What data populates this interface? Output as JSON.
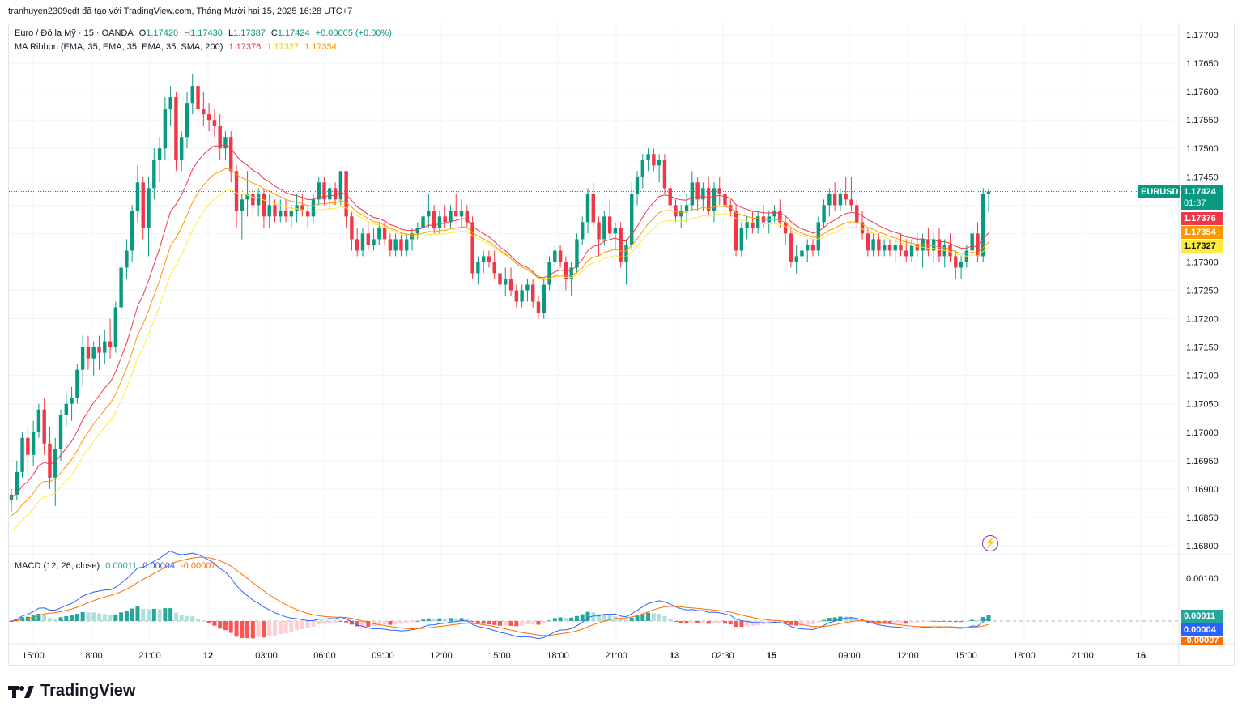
{
  "credit": "tranhuyen2309cdt đã tạo với TradingView.com, Tháng Mười hai 15, 2025 16:28 UTC+7",
  "symbol_line": {
    "name": "Euro / Đô la Mỹ · 15 · OANDA",
    "o_label": "O",
    "o": "1.17420",
    "h_label": "H",
    "h": "1.17430",
    "l_label": "L",
    "l": "1.17387",
    "c_label": "C",
    "c": "1.17424",
    "change": "+0.00005 (+0.00%)"
  },
  "ma_line": {
    "name": "MA Ribbon (EMA, 35, EMA, 35, EMA, 35, SMA, 200)",
    "v1": "1.17376",
    "v2": "1.17327",
    "v3": "1.17354"
  },
  "macd_line": {
    "name": "MACD (12, 26, close)",
    "v1": "0.00011",
    "v2": "0.00004",
    "v3": "-0.00007"
  },
  "price_axis": [
    "1.17700",
    "1.17650",
    "1.17600",
    "1.17550",
    "1.17500",
    "1.17450",
    "1.17400",
    "1.17350",
    "1.17300",
    "1.17250",
    "1.17200",
    "1.17150",
    "1.17100",
    "1.17050",
    "1.17000",
    "1.16950",
    "1.16900",
    "1.16850",
    "1.16800"
  ],
  "macd_axis": [
    "0.00100"
  ],
  "time_axis": [
    "15:00",
    "18:00",
    "21:00",
    "12",
    "03:00",
    "06:00",
    "09:00",
    "12:00",
    "15:00",
    "18:00",
    "21:00",
    "13",
    "02:30",
    "15",
    "09:00",
    "12:00",
    "15:00",
    "18:00",
    "21:00",
    "16"
  ],
  "tags": {
    "symbol": "EURUSD",
    "last": "1.17424",
    "countdown": "01:37",
    "ma_red": "1.17376",
    "ma_orange": "1.17354",
    "ma_yellow": "1.17327",
    "macd_hist": "0.00011",
    "macd_line": "0.00004",
    "macd_signal": "-0.00007"
  },
  "brand": "TradingView",
  "colors": {
    "up": "#089981",
    "down": "#f23645",
    "ma_red": "#f23645",
    "ma_orange": "#ff9800",
    "ma_yellow": "#ffeb3b",
    "macd": "#2962ff",
    "signal": "#ff6d00",
    "hist_up_strong": "#26a69a",
    "hist_up_weak": "#b2dfdb",
    "hist_down_strong": "#ff5252",
    "hist_down_weak": "#ffcdd2"
  },
  "chart_data": {
    "type": "candlestick",
    "instrument": "EURUSD",
    "ylim": [
      1.1678,
      1.1771
    ],
    "candles_ohlc": [
      [
        1.1688,
        1.169,
        1.1686,
        1.1689
      ],
      [
        1.1689,
        1.1695,
        1.1688,
        1.1693
      ],
      [
        1.1693,
        1.17,
        1.1692,
        1.1699
      ],
      [
        1.1699,
        1.1701,
        1.1693,
        1.1696
      ],
      [
        1.1696,
        1.1702,
        1.1694,
        1.17
      ],
      [
        1.17,
        1.1705,
        1.1699,
        1.1704
      ],
      [
        1.1704,
        1.1706,
        1.1696,
        1.1698
      ],
      [
        1.1698,
        1.1701,
        1.169,
        1.1692
      ],
      [
        1.1692,
        1.1699,
        1.1687,
        1.1697
      ],
      [
        1.1697,
        1.1704,
        1.1695,
        1.1703
      ],
      [
        1.1703,
        1.1707,
        1.1701,
        1.1705
      ],
      [
        1.1705,
        1.1708,
        1.1702,
        1.1706
      ],
      [
        1.1706,
        1.1712,
        1.1705,
        1.1711
      ],
      [
        1.1711,
        1.1717,
        1.1708,
        1.1715
      ],
      [
        1.1715,
        1.1717,
        1.1711,
        1.1713
      ],
      [
        1.1713,
        1.1716,
        1.171,
        1.1715
      ],
      [
        1.1715,
        1.1717,
        1.1711,
        1.1714
      ],
      [
        1.1714,
        1.1718,
        1.1712,
        1.1716
      ],
      [
        1.1716,
        1.172,
        1.1713,
        1.1715
      ],
      [
        1.1715,
        1.1723,
        1.1714,
        1.1722
      ],
      [
        1.1722,
        1.173,
        1.172,
        1.1729
      ],
      [
        1.1729,
        1.1734,
        1.1727,
        1.1732
      ],
      [
        1.1732,
        1.174,
        1.173,
        1.1739
      ],
      [
        1.1739,
        1.1747,
        1.1737,
        1.1744
      ],
      [
        1.1744,
        1.1745,
        1.1734,
        1.1736
      ],
      [
        1.1736,
        1.1745,
        1.1731,
        1.1743
      ],
      [
        1.1743,
        1.175,
        1.1741,
        1.1748
      ],
      [
        1.1748,
        1.1752,
        1.1744,
        1.175
      ],
      [
        1.175,
        1.1759,
        1.1748,
        1.1757
      ],
      [
        1.1757,
        1.1761,
        1.1754,
        1.1759
      ],
      [
        1.1759,
        1.176,
        1.1746,
        1.1748
      ],
      [
        1.1748,
        1.1753,
        1.1746,
        1.1752
      ],
      [
        1.1752,
        1.176,
        1.175,
        1.1758
      ],
      [
        1.1758,
        1.1763,
        1.1756,
        1.1761
      ],
      [
        1.1761,
        1.17625,
        1.1754,
        1.1757
      ],
      [
        1.1757,
        1.176,
        1.1754,
        1.1756
      ],
      [
        1.1756,
        1.1758,
        1.1753,
        1.1755
      ],
      [
        1.1755,
        1.1757,
        1.1752,
        1.1754
      ],
      [
        1.1754,
        1.1756,
        1.1748,
        1.175
      ],
      [
        1.175,
        1.1753,
        1.1748,
        1.1752
      ],
      [
        1.1752,
        1.1753,
        1.1744,
        1.1746
      ],
      [
        1.1746,
        1.1747,
        1.1736,
        1.1739
      ],
      [
        1.1739,
        1.1742,
        1.1734,
        1.1741
      ],
      [
        1.1741,
        1.1746,
        1.1738,
        1.1742
      ],
      [
        1.1742,
        1.1743,
        1.1738,
        1.174
      ],
      [
        1.174,
        1.1743,
        1.1738,
        1.1742
      ],
      [
        1.1742,
        1.1743,
        1.1736,
        1.1738
      ],
      [
        1.1738,
        1.1742,
        1.1736,
        1.174
      ],
      [
        1.174,
        1.1741,
        1.1737,
        1.1738
      ],
      [
        1.1738,
        1.1741,
        1.1737,
        1.1739
      ],
      [
        1.1739,
        1.1741,
        1.1737,
        1.1738
      ],
      [
        1.1738,
        1.174,
        1.1736,
        1.1739
      ],
      [
        1.1739,
        1.1742,
        1.1737,
        1.174
      ],
      [
        1.174,
        1.1742,
        1.1738,
        1.1739
      ],
      [
        1.1739,
        1.174,
        1.1736,
        1.1738
      ],
      [
        1.1738,
        1.1742,
        1.1737,
        1.1741
      ],
      [
        1.1741,
        1.1745,
        1.174,
        1.1744
      ],
      [
        1.1744,
        1.1745,
        1.174,
        1.1741
      ],
      [
        1.1741,
        1.1744,
        1.1739,
        1.1743
      ],
      [
        1.1743,
        1.1744,
        1.174,
        1.1741
      ],
      [
        1.1741,
        1.1746,
        1.174,
        1.1746
      ],
      [
        1.1746,
        1.1746,
        1.1736,
        1.1738
      ],
      [
        1.1738,
        1.1739,
        1.1732,
        1.1734
      ],
      [
        1.1734,
        1.1736,
        1.1731,
        1.1732
      ],
      [
        1.1732,
        1.1736,
        1.1731,
        1.1735
      ],
      [
        1.1735,
        1.1737,
        1.1732,
        1.1733
      ],
      [
        1.1733,
        1.1736,
        1.1732,
        1.1734
      ],
      [
        1.1734,
        1.1737,
        1.1733,
        1.1736
      ],
      [
        1.1736,
        1.1737,
        1.1733,
        1.1734
      ],
      [
        1.1734,
        1.1735,
        1.1731,
        1.1732
      ],
      [
        1.1732,
        1.1735,
        1.1731,
        1.1734
      ],
      [
        1.1734,
        1.1735,
        1.1731,
        1.1732
      ],
      [
        1.1732,
        1.1735,
        1.1731,
        1.1734
      ],
      [
        1.1734,
        1.1736,
        1.1732,
        1.1735
      ],
      [
        1.1735,
        1.1737,
        1.1734,
        1.1736
      ],
      [
        1.1736,
        1.1739,
        1.1735,
        1.1738
      ],
      [
        1.1738,
        1.1742,
        1.1736,
        1.1739
      ],
      [
        1.1739,
        1.174,
        1.1735,
        1.1736
      ],
      [
        1.1736,
        1.1739,
        1.1735,
        1.1738
      ],
      [
        1.1738,
        1.174,
        1.1736,
        1.1737
      ],
      [
        1.1737,
        1.174,
        1.1736,
        1.1739
      ],
      [
        1.1739,
        1.1742,
        1.1738,
        1.1738
      ],
      [
        1.1738,
        1.1741,
        1.1736,
        1.1739
      ],
      [
        1.1739,
        1.174,
        1.1736,
        1.1737
      ],
      [
        1.1737,
        1.1738,
        1.1727,
        1.1728
      ],
      [
        1.1728,
        1.1731,
        1.1726,
        1.173
      ],
      [
        1.173,
        1.1732,
        1.1728,
        1.1731
      ],
      [
        1.1731,
        1.1732,
        1.1729,
        1.173
      ],
      [
        1.173,
        1.1732,
        1.1727,
        1.1728
      ],
      [
        1.1728,
        1.1729,
        1.1725,
        1.1726
      ],
      [
        1.1726,
        1.1729,
        1.1724,
        1.1727
      ],
      [
        1.1727,
        1.1729,
        1.1724,
        1.1725
      ],
      [
        1.1725,
        1.1726,
        1.1722,
        1.1723
      ],
      [
        1.1723,
        1.1726,
        1.1722,
        1.1725
      ],
      [
        1.1725,
        1.1727,
        1.1723,
        1.1726
      ],
      [
        1.1726,
        1.1727,
        1.1722,
        1.1723
      ],
      [
        1.1723,
        1.1724,
        1.172,
        1.1721
      ],
      [
        1.1721,
        1.1727,
        1.172,
        1.1726
      ],
      [
        1.1726,
        1.1731,
        1.1725,
        1.173
      ],
      [
        1.173,
        1.1733,
        1.1729,
        1.1732
      ],
      [
        1.1732,
        1.1733,
        1.1729,
        1.173
      ],
      [
        1.173,
        1.1731,
        1.1725,
        1.1727
      ],
      [
        1.1727,
        1.173,
        1.1724,
        1.1729
      ],
      [
        1.1729,
        1.1735,
        1.1728,
        1.1734
      ],
      [
        1.1734,
        1.1738,
        1.1733,
        1.1737
      ],
      [
        1.1737,
        1.1743,
        1.1735,
        1.1742
      ],
      [
        1.1742,
        1.1744,
        1.1736,
        1.1737
      ],
      [
        1.1737,
        1.1738,
        1.1731,
        1.1734
      ],
      [
        1.1734,
        1.1739,
        1.1733,
        1.1738
      ],
      [
        1.1738,
        1.1741,
        1.1734,
        1.1735
      ],
      [
        1.1735,
        1.1737,
        1.1732,
        1.1736
      ],
      [
        1.1736,
        1.1737,
        1.1729,
        1.173
      ],
      [
        1.173,
        1.1734,
        1.1726,
        1.1733
      ],
      [
        1.1733,
        1.1744,
        1.1732,
        1.1742
      ],
      [
        1.1742,
        1.1746,
        1.174,
        1.1745
      ],
      [
        1.1745,
        1.1749,
        1.1743,
        1.1748
      ],
      [
        1.1748,
        1.175,
        1.1746,
        1.1749
      ],
      [
        1.1749,
        1.175,
        1.1746,
        1.1747
      ],
      [
        1.1747,
        1.1749,
        1.1744,
        1.1748
      ],
      [
        1.1748,
        1.1749,
        1.1742,
        1.1743
      ],
      [
        1.1743,
        1.1744,
        1.1739,
        1.174
      ],
      [
        1.174,
        1.1741,
        1.1737,
        1.1738
      ],
      [
        1.1738,
        1.174,
        1.1736,
        1.1739
      ],
      [
        1.1739,
        1.1742,
        1.1737,
        1.174
      ],
      [
        1.174,
        1.1746,
        1.1739,
        1.1744
      ],
      [
        1.1744,
        1.1745,
        1.1739,
        1.1741
      ],
      [
        1.1741,
        1.1744,
        1.1739,
        1.1743
      ],
      [
        1.1743,
        1.1745,
        1.1738,
        1.1739
      ],
      [
        1.1739,
        1.1744,
        1.1737,
        1.1743
      ],
      [
        1.1743,
        1.1745,
        1.174,
        1.1742
      ],
      [
        1.1742,
        1.1743,
        1.1738,
        1.174
      ],
      [
        1.174,
        1.1741,
        1.1738,
        1.1739
      ],
      [
        1.1739,
        1.174,
        1.1731,
        1.1732
      ],
      [
        1.1732,
        1.1737,
        1.1731,
        1.1736
      ],
      [
        1.1736,
        1.1738,
        1.1734,
        1.1737
      ],
      [
        1.1737,
        1.1739,
        1.1735,
        1.1736
      ],
      [
        1.1736,
        1.1739,
        1.1735,
        1.1738
      ],
      [
        1.1738,
        1.174,
        1.1736,
        1.1737
      ],
      [
        1.1737,
        1.1739,
        1.1735,
        1.1738
      ],
      [
        1.1738,
        1.174,
        1.1737,
        1.1739
      ],
      [
        1.1739,
        1.1741,
        1.1736,
        1.1737
      ],
      [
        1.1737,
        1.1738,
        1.1733,
        1.1735
      ],
      [
        1.1735,
        1.1736,
        1.1729,
        1.173
      ],
      [
        1.173,
        1.1733,
        1.1728,
        1.1731
      ],
      [
        1.1731,
        1.1733,
        1.1729,
        1.1732
      ],
      [
        1.1732,
        1.1734,
        1.173,
        1.1733
      ],
      [
        1.1733,
        1.1734,
        1.1731,
        1.1732
      ],
      [
        1.1732,
        1.1738,
        1.1731,
        1.1737
      ],
      [
        1.1737,
        1.1741,
        1.1736,
        1.174
      ],
      [
        1.174,
        1.1743,
        1.1738,
        1.1742
      ],
      [
        1.1742,
        1.1744,
        1.1739,
        1.174
      ],
      [
        1.174,
        1.1743,
        1.1739,
        1.1742
      ],
      [
        1.1742,
        1.1745,
        1.174,
        1.1741
      ],
      [
        1.1741,
        1.1745,
        1.1739,
        1.174
      ],
      [
        1.174,
        1.1741,
        1.1736,
        1.1737
      ],
      [
        1.1737,
        1.1739,
        1.1734,
        1.1735
      ],
      [
        1.1735,
        1.1736,
        1.1731,
        1.1732
      ],
      [
        1.1732,
        1.1735,
        1.1731,
        1.1734
      ],
      [
        1.1734,
        1.1735,
        1.1731,
        1.1732
      ],
      [
        1.1732,
        1.1734,
        1.1731,
        1.1733
      ],
      [
        1.1733,
        1.1734,
        1.1731,
        1.1732
      ],
      [
        1.1732,
        1.1734,
        1.173,
        1.1733
      ],
      [
        1.1733,
        1.1735,
        1.1731,
        1.1732
      ],
      [
        1.1732,
        1.1734,
        1.173,
        1.1731
      ],
      [
        1.1731,
        1.1734,
        1.173,
        1.1733
      ],
      [
        1.1733,
        1.1735,
        1.1731,
        1.1732
      ],
      [
        1.1732,
        1.1735,
        1.1729,
        1.1734
      ],
      [
        1.1734,
        1.1736,
        1.1731,
        1.1732
      ],
      [
        1.1732,
        1.1735,
        1.173,
        1.1734
      ],
      [
        1.1734,
        1.1736,
        1.173,
        1.1731
      ],
      [
        1.1731,
        1.1734,
        1.1729,
        1.1733
      ],
      [
        1.1733,
        1.1735,
        1.173,
        1.1731
      ],
      [
        1.1731,
        1.1732,
        1.1727,
        1.1729
      ],
      [
        1.1729,
        1.1731,
        1.1727,
        1.173
      ],
      [
        1.173,
        1.1733,
        1.1729,
        1.1732
      ],
      [
        1.1732,
        1.1736,
        1.1731,
        1.1735
      ],
      [
        1.1735,
        1.1737,
        1.173,
        1.1731
      ],
      [
        1.1731,
        1.1743,
        1.173,
        1.1742
      ],
      [
        1.1742,
        1.1743,
        1.17387,
        1.17424
      ]
    ]
  }
}
